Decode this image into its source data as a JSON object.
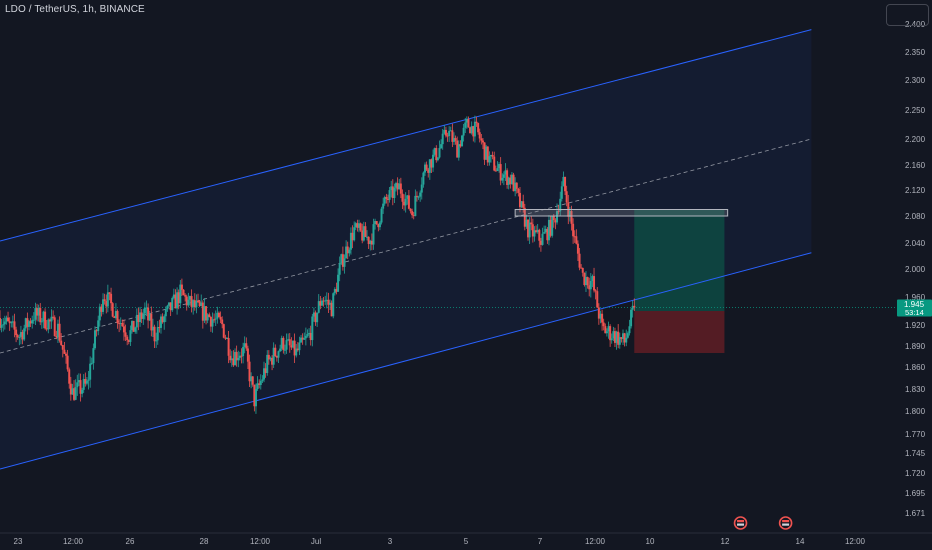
{
  "header": {
    "title": "LDO / TetherUS, 1h, BINANCE"
  },
  "price_axis": {
    "ticks": [
      "2.400",
      "2.350",
      "2.300",
      "2.250",
      "2.200",
      "2.160",
      "2.120",
      "2.080",
      "2.040",
      "2.000",
      "1.960",
      "1.920",
      "1.890",
      "1.860",
      "1.830",
      "1.800",
      "1.770",
      "1.745",
      "1.720",
      "1.695",
      "1.671"
    ],
    "current_price": "1.945",
    "countdown": "53:14"
  },
  "time_axis": {
    "labels": [
      "23",
      "12:00",
      "26",
      "28",
      "12:00",
      "Jul",
      "3",
      "5",
      "7",
      "12:00",
      "10",
      "12",
      "14",
      "12:00"
    ]
  },
  "colors": {
    "background": "#131722",
    "up": "#26a69a",
    "down": "#ef5350",
    "channel_line": "#2962ff",
    "axis_text": "#b2b5be",
    "price_badge": "#089981",
    "take_profit": "#0d4a43",
    "stop_loss": "#5c1d25"
  },
  "chart_data": {
    "type": "candlestick",
    "symbol": "LDO / TetherUS",
    "interval": "1h",
    "exchange": "BINANCE",
    "ylim": [
      1.655,
      2.42
    ],
    "x_range": [
      "Jun 22 12:00",
      "Jul 14 12:00"
    ],
    "close_path": [
      {
        "t": "Jun 22 12:00",
        "p": 1.93
      },
      {
        "t": "Jun 23 00:00",
        "p": 1.905
      },
      {
        "t": "Jun 23 09:00",
        "p": 1.935
      },
      {
        "t": "Jun 23 14:00",
        "p": 1.93
      },
      {
        "t": "Jun 24 00:00",
        "p": 1.915
      },
      {
        "t": "Jun 24 09:00",
        "p": 1.825
      },
      {
        "t": "Jun 24 18:00",
        "p": 1.835
      },
      {
        "t": "Jun 25 04:00",
        "p": 1.965
      },
      {
        "t": "Jun 25 10:00",
        "p": 1.945
      },
      {
        "t": "Jun 25 20:00",
        "p": 1.905
      },
      {
        "t": "Jun 26 06:00",
        "p": 1.94
      },
      {
        "t": "Jun 26 12:00",
        "p": 1.905
      },
      {
        "t": "Jun 26 18:00",
        "p": 1.93
      },
      {
        "t": "Jun 27 04:00",
        "p": 1.965
      },
      {
        "t": "Jun 27 10:00",
        "p": 1.95
      },
      {
        "t": "Jun 27 20:00",
        "p": 1.935
      },
      {
        "t": "Jun 28 06:00",
        "p": 1.92
      },
      {
        "t": "Jun 28 12:00",
        "p": 1.875
      },
      {
        "t": "Jun 28 20:00",
        "p": 1.885
      },
      {
        "t": "Jun 29 02:00",
        "p": 1.815
      },
      {
        "t": "Jun 29 10:00",
        "p": 1.865
      },
      {
        "t": "Jun 29 20:00",
        "p": 1.895
      },
      {
        "t": "Jun 30 04:00",
        "p": 1.88
      },
      {
        "t": "Jun 30 12:00",
        "p": 1.905
      },
      {
        "t": "Jun 30 20:00",
        "p": 1.96
      },
      {
        "t": "Jul 01 02:00",
        "p": 1.945
      },
      {
        "t": "Jul 01 08:00",
        "p": 2.01
      },
      {
        "t": "Jul 01 16:00",
        "p": 2.06
      },
      {
        "t": "Jul 02 02:00",
        "p": 2.045
      },
      {
        "t": "Jul 02 12:00",
        "p": 2.105
      },
      {
        "t": "Jul 02 20:00",
        "p": 2.125
      },
      {
        "t": "Jul 03 04:00",
        "p": 2.085
      },
      {
        "t": "Jul 03 12:00",
        "p": 2.155
      },
      {
        "t": "Jul 03 20:00",
        "p": 2.18
      },
      {
        "t": "Jul 04 02:00",
        "p": 2.215
      },
      {
        "t": "Jul 04 08:00",
        "p": 2.185
      },
      {
        "t": "Jul 04 14:00",
        "p": 2.225
      },
      {
        "t": "Jul 04 20:00",
        "p": 2.215
      },
      {
        "t": "Jul 05 02:00",
        "p": 2.175
      },
      {
        "t": "Jul 05 10:00",
        "p": 2.15
      },
      {
        "t": "Jul 05 18:00",
        "p": 2.135
      },
      {
        "t": "Jul 06 04:00",
        "p": 2.06
      },
      {
        "t": "Jul 06 12:00",
        "p": 2.045
      },
      {
        "t": "Jul 06 20:00",
        "p": 2.07
      },
      {
        "t": "Jul 07 02:00",
        "p": 2.13
      },
      {
        "t": "Jul 07 08:00",
        "p": 2.055
      },
      {
        "t": "Jul 07 14:00",
        "p": 1.99
      },
      {
        "t": "Jul 07 20:00",
        "p": 1.98
      },
      {
        "t": "Jul 08 02:00",
        "p": 1.915
      },
      {
        "t": "Jul 08 10:00",
        "p": 1.905
      },
      {
        "t": "Jul 08 16:00",
        "p": 1.895
      },
      {
        "t": "Jul 08 22:00",
        "p": 1.945
      }
    ],
    "current_price": 1.945,
    "channel": {
      "upper": [
        {
          "t": "Jun 22 12:00",
          "p": 2.043
        },
        {
          "t": "Jul 13 12:00",
          "p": 2.39
        }
      ],
      "mid": [
        {
          "t": "Jun 22 12:00",
          "p": 1.88
        },
        {
          "t": "Jul 13 12:00",
          "p": 2.2
        }
      ],
      "lower": [
        {
          "t": "Jun 22 12:00",
          "p": 1.725
        },
        {
          "t": "Jul 13 12:00",
          "p": 2.025
        }
      ]
    },
    "resistance_zone": {
      "t_start": "Jul 05 20:00",
      "t_end": "Jul 11 08:00",
      "p_top": 2.09,
      "p_bottom": 2.08
    },
    "long_position": {
      "t_start": "Jul 08 22:00",
      "t_end": "Jul 11 06:00",
      "entry": 1.94,
      "target": 2.09,
      "stop": 1.88
    },
    "event_markers": [
      "Jul 11 16:00",
      "Jul 12 20:00"
    ]
  }
}
